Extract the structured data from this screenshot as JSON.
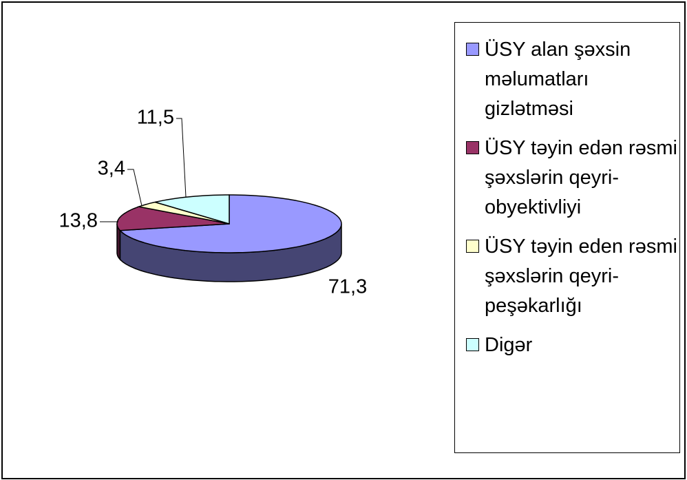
{
  "chart_data": {
    "type": "pie",
    "three_d": true,
    "categories": [
      "ÜSY alan şəxsin məlumatları gizlətməsi",
      "ÜSY təyin edən rəsmi şəxslərin qeyri-obyektivliyi",
      "ÜSY təyin eden rəsmi şəxslərin qeyri-peşəkarlığı",
      "Digər"
    ],
    "values": [
      71.3,
      13.8,
      3.4,
      11.5
    ],
    "value_labels": [
      "71,3",
      "13,8",
      "3,4",
      "11,5"
    ],
    "colors": [
      "#9999ff",
      "#993366",
      "#ffffcc",
      "#ccffff"
    ],
    "legend": "right"
  }
}
